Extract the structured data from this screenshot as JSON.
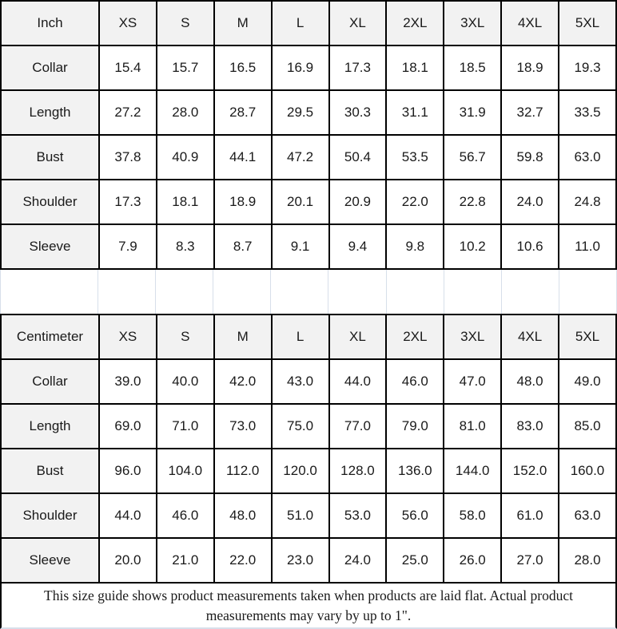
{
  "colors": {
    "header_bg": "#f2f2f2",
    "border": "#000000",
    "grid_light": "#d7dfea",
    "text": "#1a1a1a"
  },
  "sizes": [
    "XS",
    "S",
    "M",
    "L",
    "XL",
    "2XL",
    "3XL",
    "4XL",
    "5XL"
  ],
  "tables": [
    {
      "unit_label": "Inch",
      "rows": [
        {
          "label": "Collar",
          "values": [
            "15.4",
            "15.7",
            "16.5",
            "16.9",
            "17.3",
            "18.1",
            "18.5",
            "18.9",
            "19.3"
          ]
        },
        {
          "label": "Length",
          "values": [
            "27.2",
            "28.0",
            "28.7",
            "29.5",
            "30.3",
            "31.1",
            "31.9",
            "32.7",
            "33.5"
          ]
        },
        {
          "label": "Bust",
          "values": [
            "37.8",
            "40.9",
            "44.1",
            "47.2",
            "50.4",
            "53.5",
            "56.7",
            "59.8",
            "63.0"
          ]
        },
        {
          "label": "Shoulder",
          "values": [
            "17.3",
            "18.1",
            "18.9",
            "20.1",
            "20.9",
            "22.0",
            "22.8",
            "24.0",
            "24.8"
          ]
        },
        {
          "label": "Sleeve",
          "values": [
            "7.9",
            "8.3",
            "8.7",
            "9.1",
            "9.4",
            "9.8",
            "10.2",
            "10.6",
            "11.0"
          ]
        }
      ]
    },
    {
      "unit_label": "Centimeter",
      "rows": [
        {
          "label": "Collar",
          "values": [
            "39.0",
            "40.0",
            "42.0",
            "43.0",
            "44.0",
            "46.0",
            "47.0",
            "48.0",
            "49.0"
          ]
        },
        {
          "label": "Length",
          "values": [
            "69.0",
            "71.0",
            "73.0",
            "75.0",
            "77.0",
            "79.0",
            "81.0",
            "83.0",
            "85.0"
          ]
        },
        {
          "label": "Bust",
          "values": [
            "96.0",
            "104.0",
            "112.0",
            "120.0",
            "128.0",
            "136.0",
            "144.0",
            "152.0",
            "160.0"
          ]
        },
        {
          "label": "Shoulder",
          "values": [
            "44.0",
            "46.0",
            "48.0",
            "51.0",
            "53.0",
            "56.0",
            "58.0",
            "61.0",
            "63.0"
          ]
        },
        {
          "label": "Sleeve",
          "values": [
            "20.0",
            "21.0",
            "22.0",
            "23.0",
            "24.0",
            "25.0",
            "26.0",
            "27.0",
            "28.0"
          ]
        }
      ]
    }
  ],
  "footer": {
    "note": "This size guide shows product measurements taken when products are laid flat. Actual product measurements may vary by up to 1\"."
  }
}
